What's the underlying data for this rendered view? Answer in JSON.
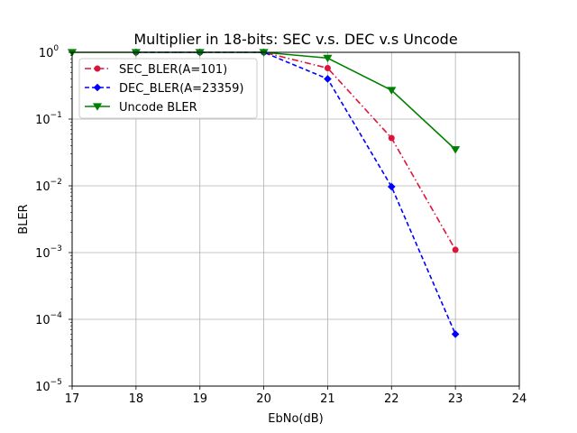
{
  "chart_data": {
    "type": "line",
    "title": "Multiplier in 18-bits: SEC v.s. DEC v.s Uncode",
    "xlabel": "EbNo(dB)",
    "ylabel": "BLER",
    "xlim": [
      17,
      24
    ],
    "ylim": [
      1e-05,
      1
    ],
    "yscale": "log",
    "grid": true,
    "legend_position": "top-left",
    "x_ticks": [
      "17",
      "18",
      "19",
      "20",
      "21",
      "22",
      "23",
      "24"
    ],
    "y_ticks": [
      {
        "base": "10",
        "exp": "0"
      },
      {
        "base": "10",
        "exp": "−1"
      },
      {
        "base": "10",
        "exp": "−2"
      },
      {
        "base": "10",
        "exp": "−3"
      },
      {
        "base": "10",
        "exp": "−4"
      },
      {
        "base": "10",
        "exp": "−5"
      }
    ],
    "series": [
      {
        "name": "SEC_BLER(A=101)",
        "color": "#dc143c",
        "linestyle": "dashdot",
        "marker": "circle",
        "x": [
          18,
          19,
          20,
          21,
          22,
          23
        ],
        "y": [
          1.0,
          1.0,
          1.0,
          0.58,
          0.052,
          0.0011
        ]
      },
      {
        "name": "DEC_BLER(A=23359)",
        "color": "#0000ff",
        "linestyle": "dashed",
        "marker": "diamond",
        "x": [
          18,
          19,
          20,
          21,
          22,
          23
        ],
        "y": [
          1.0,
          1.0,
          1.0,
          0.4,
          0.0097,
          6e-05
        ]
      },
      {
        "name": "Uncode BLER",
        "color": "#008000",
        "linestyle": "solid",
        "marker": "triangle-down",
        "x": [
          17,
          18,
          19,
          20,
          21,
          22,
          23
        ],
        "y": [
          1.0,
          1.0,
          1.0,
          1.0,
          0.82,
          0.27,
          0.035
        ]
      }
    ]
  }
}
